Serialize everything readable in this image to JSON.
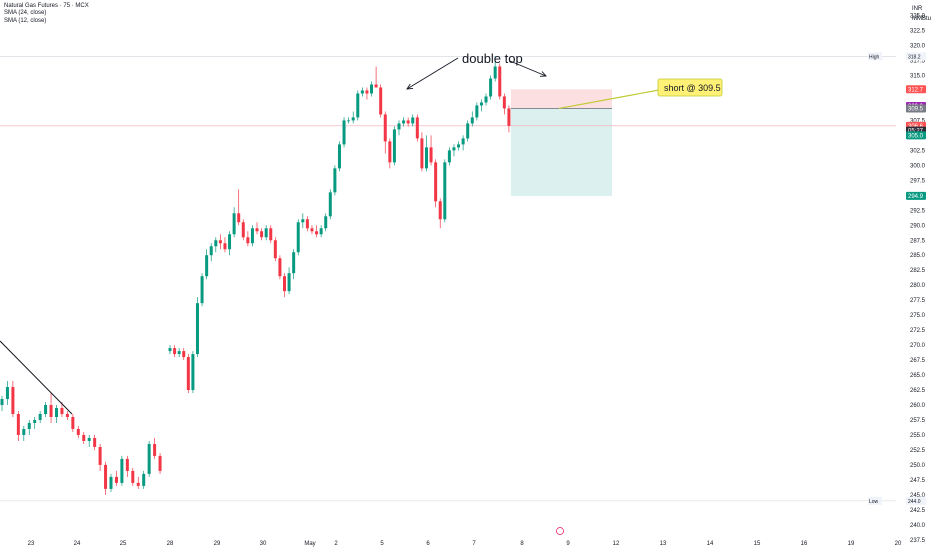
{
  "legend": {
    "title": "Natural Gas Futures · 75 · MCX",
    "sma1": "SMA (24, close)",
    "sma2": "SMA (12, close)"
  },
  "axis": {
    "currency": "INR",
    "unit": "MMBtu",
    "high_label": "High",
    "low_label": "Low"
  },
  "colors": {
    "up": "#089981",
    "down": "#f23645",
    "stop_zone": "#f7c4c8",
    "target_zone": "#b2e0dc",
    "callout_fill": "#fff176",
    "callout_line": "#c0ca33",
    "badge_orange": "#ff5252",
    "badge_purple": "#9c27b0",
    "badge_gray": "#787b86",
    "badge_green": "#089981",
    "badge_dark": "#2a2e39"
  },
  "annotations": {
    "double_top": "double top",
    "short": "short @ 309.5"
  },
  "chart_data": {
    "type": "candlestick",
    "ylim": [
      235.8,
      327.6
    ],
    "y_ticks": [
      "237.5",
      "240.0",
      "242.5",
      "245.0",
      "247.5",
      "250.0",
      "252.5",
      "255.0",
      "257.5",
      "260.0",
      "262.5",
      "265.0",
      "267.5",
      "270.0",
      "272.5",
      "275.0",
      "277.5",
      "280.0",
      "282.5",
      "285.0",
      "287.5",
      "290.0",
      "292.5",
      "295.0",
      "297.5",
      "300.0",
      "302.5",
      "305.0",
      "307.5",
      "310.0",
      "312.5",
      "315.0",
      "317.5",
      "320.0",
      "322.5",
      "325.0"
    ],
    "x_labels": [
      "23",
      "24",
      "25",
      "28",
      "29",
      "30",
      "May",
      "2",
      "5",
      "6",
      "7",
      "8",
      "9",
      "12",
      "13",
      "14",
      "15",
      "16",
      "19",
      "20"
    ],
    "price_badges": [
      {
        "label": "318.2",
        "value": 318.2,
        "kind": "high"
      },
      {
        "label": "312.7",
        "value": 312.7,
        "kind": "orange"
      },
      {
        "label": "309.9",
        "value": 309.9,
        "kind": "purple"
      },
      {
        "label": "309.5",
        "value": 309.5,
        "kind": "gray"
      },
      {
        "label": "306.6",
        "value": 306.6,
        "kind": "orange"
      },
      {
        "label": "05:27",
        "value": 305.8,
        "kind": "dark"
      },
      {
        "label": "305.0",
        "value": 305.0,
        "kind": "green"
      },
      {
        "label": "294.9",
        "value": 294.9,
        "kind": "green"
      },
      {
        "label": "244.0",
        "value": 244.0,
        "kind": "low"
      }
    ],
    "high_line": 318.2,
    "current_line": 306.6,
    "low_line": 244.0,
    "position": {
      "entry": 309.5,
      "stop": 312.7,
      "target": 294.9
    },
    "candles": [
      [
        260,
        261.5,
        259,
        261
      ],
      [
        261,
        264,
        260,
        263
      ],
      [
        263,
        264,
        258,
        258.5
      ],
      [
        258.5,
        259,
        254,
        255
      ],
      [
        255,
        256.5,
        254,
        256
      ],
      [
        256,
        257.5,
        255,
        257
      ],
      [
        257,
        258,
        256,
        257.5
      ],
      [
        257.5,
        259,
        257,
        258.5
      ],
      [
        258.5,
        260.5,
        258,
        260
      ],
      [
        260,
        262,
        257,
        258
      ],
      [
        258,
        260,
        257,
        259.5
      ],
      [
        259.5,
        260.5,
        258,
        258.5
      ],
      [
        258.5,
        259,
        257.5,
        258
      ],
      [
        258,
        258.5,
        255.5,
        256
      ],
      [
        256,
        256.5,
        254.5,
        255
      ],
      [
        255,
        255.5,
        253.5,
        254
      ],
      [
        254,
        255,
        253,
        254.5
      ],
      [
        254.5,
        255,
        252.5,
        253
      ],
      [
        253,
        253.5,
        249,
        250
      ],
      [
        250,
        250.5,
        245,
        246
      ],
      [
        246,
        248.5,
        245.5,
        248
      ],
      [
        248,
        249,
        246.5,
        247
      ],
      [
        247,
        251.5,
        246.5,
        251
      ],
      [
        251,
        251.5,
        248,
        249
      ],
      [
        249,
        249.5,
        246.5,
        247
      ],
      [
        247,
        248,
        246,
        246.5
      ],
      [
        246.5,
        249,
        246,
        248.5
      ],
      [
        248.5,
        254,
        248,
        253.5
      ],
      [
        253.5,
        254.5,
        251,
        251.5
      ],
      [
        251.5,
        252,
        248.5,
        249
      ],
      [
        269,
        270,
        268.5,
        269.5
      ],
      [
        269.5,
        270,
        268,
        268.5
      ],
      [
        268.5,
        269.5,
        268,
        269
      ],
      [
        269,
        269.5,
        267.5,
        268
      ],
      [
        268,
        268.5,
        262,
        262.5
      ],
      [
        262.5,
        269,
        262,
        268.5
      ],
      [
        268.5,
        278,
        268,
        277
      ],
      [
        277,
        282,
        276.5,
        281.5
      ],
      [
        281.5,
        286,
        281,
        285
      ],
      [
        285,
        287,
        284,
        286.5
      ],
      [
        286.5,
        288,
        285.5,
        287.5
      ],
      [
        287.5,
        288.5,
        286,
        287
      ],
      [
        287,
        288,
        285.5,
        286
      ],
      [
        286,
        289,
        285,
        288.5
      ],
      [
        288.5,
        293,
        288,
        292
      ],
      [
        292,
        296,
        290,
        290.5
      ],
      [
        290.5,
        291,
        287.5,
        288
      ],
      [
        288,
        289,
        286.5,
        287
      ],
      [
        287,
        290,
        286.5,
        289.5
      ],
      [
        289.5,
        290.5,
        288.5,
        289
      ],
      [
        289,
        289.5,
        287.5,
        288
      ],
      [
        288,
        290,
        287.5,
        289.5
      ],
      [
        289.5,
        290,
        287,
        287.5
      ],
      [
        287.5,
        288,
        284,
        284.5
      ],
      [
        284.5,
        285,
        281,
        281.5
      ],
      [
        281.5,
        282,
        278,
        279
      ],
      [
        279,
        283,
        278.5,
        282
      ],
      [
        282,
        286,
        281,
        285.5
      ],
      [
        285.5,
        291,
        285,
        290.5
      ],
      [
        290.5,
        292,
        289.5,
        291
      ],
      [
        291,
        291.5,
        289,
        289.5
      ],
      [
        289.5,
        290,
        288.5,
        289
      ],
      [
        289,
        290,
        288,
        288.5
      ],
      [
        288.5,
        290,
        288,
        289.5
      ],
      [
        289.5,
        292,
        289,
        291.5
      ],
      [
        291.5,
        296,
        291,
        295.5
      ],
      [
        295.5,
        300,
        295,
        299.5
      ],
      [
        299.5,
        304,
        299,
        303.5
      ],
      [
        303.5,
        308,
        303,
        307.5
      ],
      [
        307.5,
        308,
        307,
        307.5
      ],
      [
        307.5,
        309,
        307,
        308
      ],
      [
        308,
        312.5,
        307.5,
        312
      ],
      [
        312,
        313,
        311.5,
        312.5
      ],
      [
        312.5,
        313,
        311,
        312
      ],
      [
        312,
        314,
        311.5,
        313.5
      ],
      [
        313.5,
        316.5,
        313,
        313
      ],
      [
        313,
        313.5,
        308,
        308.5
      ],
      [
        308.5,
        309,
        302,
        304
      ],
      [
        304,
        304.5,
        299.5,
        300.5
      ],
      [
        300.5,
        306.5,
        300,
        306
      ],
      [
        306,
        307.5,
        305,
        307
      ],
      [
        307,
        308,
        306.5,
        307.5
      ],
      [
        307.5,
        308,
        306.5,
        307
      ],
      [
        307,
        308.5,
        306.5,
        308
      ],
      [
        308,
        308.5,
        304,
        304.5
      ],
      [
        304.5,
        305.5,
        299,
        299.5
      ],
      [
        299.5,
        305,
        299,
        303
      ],
      [
        303,
        305,
        300,
        300.5
      ],
      [
        300.5,
        301,
        293,
        294
      ],
      [
        294,
        294.5,
        289.5,
        291
      ],
      [
        291,
        301,
        290.5,
        300.5
      ],
      [
        300.5,
        303,
        300,
        302.5
      ],
      [
        302.5,
        303.5,
        301.5,
        303
      ],
      [
        303,
        304,
        302.5,
        303.5
      ],
      [
        303.5,
        305,
        302.5,
        304.5
      ],
      [
        304.5,
        307.5,
        304,
        307
      ],
      [
        307,
        309,
        306.5,
        308
      ],
      [
        308,
        310.5,
        307.5,
        310
      ],
      [
        310,
        311,
        309,
        310.5
      ],
      [
        310.5,
        312,
        310,
        311.5
      ],
      [
        311.5,
        315,
        311,
        314.5
      ],
      [
        314.5,
        318.2,
        314,
        316.5
      ],
      [
        316.5,
        317,
        311,
        311.5
      ],
      [
        311.5,
        312,
        308.5,
        309.5
      ],
      [
        309.5,
        310,
        305.5,
        306.6
      ]
    ]
  }
}
